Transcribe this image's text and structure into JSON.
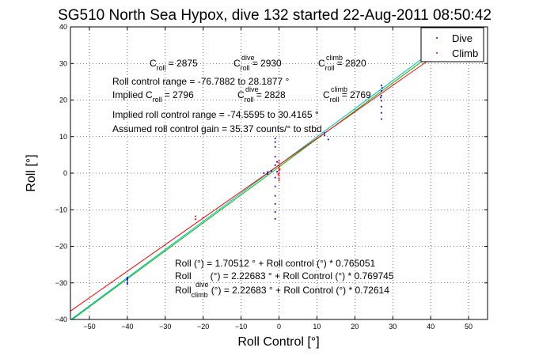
{
  "chart_data": {
    "type": "scatter",
    "title": "SG510 North Sea Hypox, dive 132 started 22-Aug-2011 08:50:42",
    "xlabel": "Roll Control [°]",
    "ylabel": "Roll [°]",
    "xlim": [
      -55,
      55
    ],
    "ylim": [
      -40,
      40
    ],
    "xticks": [
      -50,
      -40,
      -30,
      -20,
      -10,
      0,
      10,
      20,
      30,
      40,
      50
    ],
    "yticks": [
      -40,
      -30,
      -20,
      -10,
      0,
      10,
      20,
      30,
      40
    ],
    "grid": true,
    "legend": {
      "position": "top-right",
      "entries": [
        "Dive",
        "Climb"
      ]
    },
    "colors": {
      "dive": "#0000ff",
      "climb": "#ff0000",
      "fit_all": "#00bb00",
      "fit_dive": "#00bbbb",
      "fit_climb": "#ff0000"
    },
    "series": [
      {
        "name": "Dive",
        "color": "#0000ff",
        "points": [
          [
            -40,
            -28.5
          ],
          [
            -40,
            -29.2
          ],
          [
            -40,
            -29.8
          ],
          [
            -40,
            -30.3
          ],
          [
            -40,
            -28.9
          ],
          [
            -1,
            9.5
          ],
          [
            -1,
            8.5
          ],
          [
            -1,
            7.2
          ],
          [
            -1,
            4.5
          ],
          [
            -1,
            2.2
          ],
          [
            -1,
            -1.2
          ],
          [
            -1,
            -3.6
          ],
          [
            -1,
            -6.2
          ],
          [
            -1,
            -8.4
          ],
          [
            -1,
            -10.6
          ],
          [
            -1,
            -12.5
          ],
          [
            -0.5,
            3.1
          ],
          [
            -0.5,
            0.4
          ],
          [
            -2,
            0.6
          ],
          [
            -3,
            -0.2
          ],
          [
            -3,
            0.3
          ],
          [
            -4,
            0
          ],
          [
            12,
            11
          ],
          [
            12,
            10.4
          ],
          [
            13,
            9.2
          ],
          [
            27,
            24
          ],
          [
            27,
            22.5
          ],
          [
            27,
            21.2
          ],
          [
            27,
            19.8
          ],
          [
            27,
            18.2
          ],
          [
            27,
            16.5
          ],
          [
            27,
            14.8
          ],
          [
            27.2,
            23.3
          ],
          [
            26.8,
            20.7
          ]
        ]
      },
      {
        "name": "Climb",
        "color": "#ff0000",
        "points": [
          [
            -22,
            -11.8
          ],
          [
            -22,
            -12.6
          ],
          [
            -20,
            -12.2
          ],
          [
            0,
            -1.4
          ],
          [
            0,
            -0.7
          ],
          [
            0,
            0
          ],
          [
            0,
            0.7
          ],
          [
            0,
            1.4
          ],
          [
            0,
            2.1
          ],
          [
            0,
            2.9
          ],
          [
            0,
            3.5
          ],
          [
            0,
            -2.0
          ],
          [
            0.2,
            1.0
          ],
          [
            -0.2,
            -0.3
          ]
        ]
      }
    ],
    "fit_lines": [
      {
        "color": "#00bb00",
        "intercept": 1.70512,
        "slope": 0.765051
      },
      {
        "color": "#00bbbb",
        "intercept": 2.22683,
        "slope": 0.769745
      },
      {
        "color": "#ff0000",
        "intercept": 2.22683,
        "slope": 0.72614
      }
    ],
    "annotations": {
      "c_roll_line": [
        {
          "base": "C",
          "sub": "roll",
          "sup": "",
          "value": "= 2875"
        },
        {
          "base": "C",
          "sub": "roll",
          "sup": "dive",
          "value": "= 2930"
        },
        {
          "base": "C",
          "sub": "roll",
          "sup": "climb",
          "value": "= 2820"
        }
      ],
      "range_line": "Roll control range = -76.7882 to 28.1877 °",
      "implied_label": "Implied C",
      "implied_sub": "roll",
      "implied_value": "= 2796",
      "implied_dive": {
        "base": "C",
        "sub": "roll",
        "sup": "dive",
        "value": "= 2828"
      },
      "implied_climb": {
        "base": "C",
        "sub": "roll",
        "sup": "climb",
        "value": "= 2769"
      },
      "implied_range_line": "Implied roll control range = -74.5595 to 30.4165 °",
      "gain_line": "Assumed roll control gain = 35.37 counts/° to stbd",
      "eq1": "Roll (°) = 1.70512 ° + Roll control (°) * 0.765051",
      "eq2_base": "Roll",
      "eq2_rest": "(°) = 2.22683 ° + Roll Control (°) * 0.769745",
      "eq3_base": "Roll",
      "eq3_sub": "climb",
      "eq3_rest": "(°) = 2.22683 ° + Roll Control (°) * 0.72614",
      "eq2_sup": "dive"
    }
  }
}
